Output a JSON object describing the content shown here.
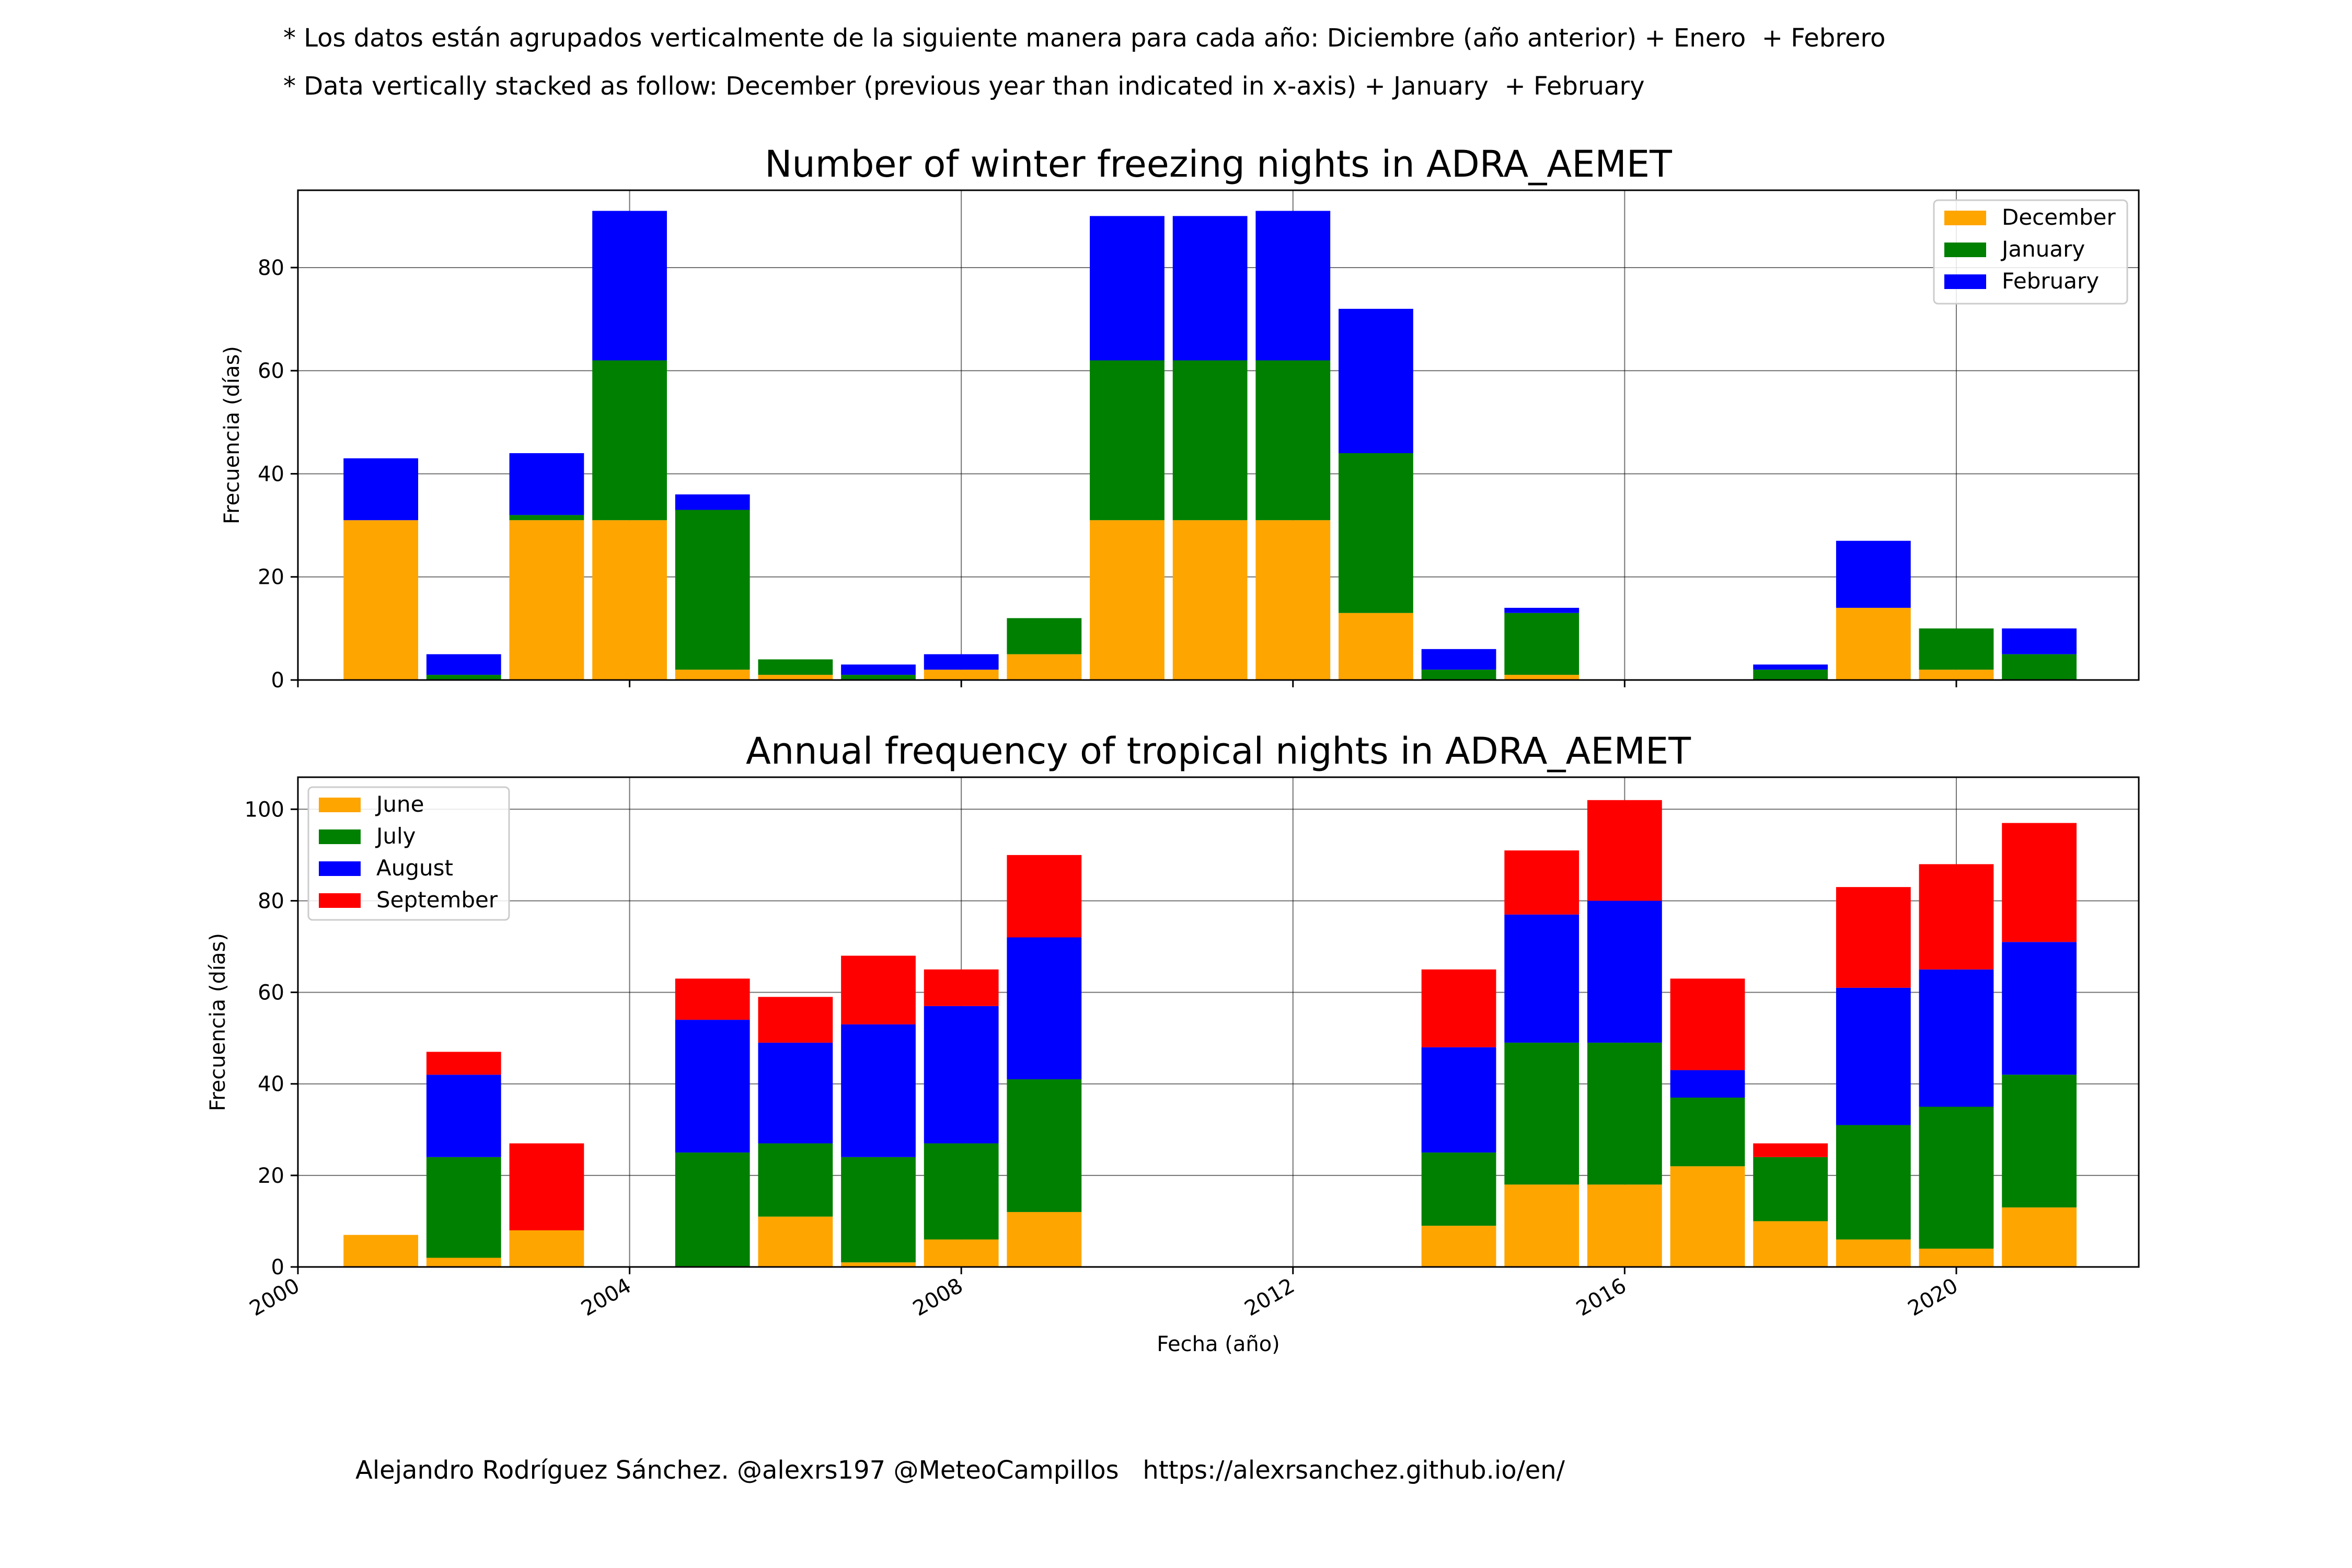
{
  "notes": {
    "line1": "* Los datos están agrupados verticalmente de la siguiente manera para cada año: Diciembre (año anterior) + Enero  + Febrero",
    "line2": "* Data vertically stacked as follow: December (previous year than indicated in x-axis) + January  + February"
  },
  "footer": "Alejandro Rodríguez Sánchez. @alexrs197 @MeteoCampillos   https://alexrsanchez.github.io/en/",
  "colors": {
    "orange": "#FFA500",
    "green": "#008000",
    "blue": "#0000FF",
    "red": "#FF0000"
  },
  "chart_data": [
    {
      "type": "bar",
      "stacked": true,
      "title": "Number of winter freezing nights in ADRA_AEMET",
      "ylabel": "Frecuencia (días)",
      "xlabel": "",
      "xlim": [
        2000,
        2022.2
      ],
      "ylim": [
        0,
        95
      ],
      "xticks": [
        2000,
        2004,
        2008,
        2012,
        2016,
        2020
      ],
      "yticks": [
        0,
        20,
        40,
        60,
        80
      ],
      "grid": true,
      "legend_position": "top-right",
      "categories": [
        2001,
        2002,
        2003,
        2004,
        2005,
        2006,
        2007,
        2008,
        2009,
        2010,
        2011,
        2012,
        2013,
        2014,
        2015,
        2016,
        2017,
        2018,
        2019,
        2020,
        2021
      ],
      "series": [
        {
          "name": "December",
          "color": "#FFA500",
          "values": [
            31,
            0,
            31,
            31,
            2,
            1,
            0,
            2,
            5,
            31,
            31,
            31,
            13,
            0,
            1,
            0,
            0,
            0,
            14,
            2,
            0
          ]
        },
        {
          "name": "January",
          "color": "#008000",
          "values": [
            0,
            1,
            1,
            31,
            31,
            3,
            1,
            0,
            7,
            31,
            31,
            31,
            31,
            2,
            12,
            0,
            0,
            2,
            0,
            8,
            5
          ]
        },
        {
          "name": "February",
          "color": "#0000FF",
          "values": [
            12,
            4,
            12,
            29,
            3,
            0,
            2,
            3,
            0,
            28,
            28,
            29,
            28,
            4,
            1,
            0,
            0,
            1,
            13,
            0,
            5
          ]
        }
      ]
    },
    {
      "type": "bar",
      "stacked": true,
      "title": "Annual frequency of tropical nights in ADRA_AEMET",
      "ylabel": "Frecuencia (días)",
      "xlabel": "Fecha (año)",
      "xlim": [
        2000,
        2022.2
      ],
      "ylim": [
        0,
        107
      ],
      "xticks": [
        2000,
        2004,
        2008,
        2012,
        2016,
        2020
      ],
      "yticks": [
        0,
        20,
        40,
        60,
        80,
        100
      ],
      "grid": true,
      "legend_position": "top-left",
      "categories": [
        2001,
        2002,
        2003,
        2004,
        2005,
        2006,
        2007,
        2008,
        2009,
        2010,
        2011,
        2012,
        2013,
        2014,
        2015,
        2016,
        2017,
        2018,
        2019,
        2020,
        2021
      ],
      "series": [
        {
          "name": "June",
          "color": "#FFA500",
          "values": [
            7,
            2,
            8,
            0,
            0,
            11,
            1,
            6,
            12,
            0,
            0,
            0,
            0,
            9,
            18,
            18,
            22,
            10,
            6,
            4,
            13
          ]
        },
        {
          "name": "July",
          "color": "#008000",
          "values": [
            0,
            22,
            0,
            0,
            25,
            16,
            23,
            21,
            29,
            0,
            0,
            0,
            0,
            16,
            31,
            31,
            15,
            14,
            25,
            31,
            29
          ]
        },
        {
          "name": "August",
          "color": "#0000FF",
          "values": [
            0,
            18,
            0,
            0,
            29,
            22,
            29,
            30,
            31,
            0,
            0,
            0,
            0,
            23,
            28,
            31,
            6,
            0,
            30,
            30,
            29
          ]
        },
        {
          "name": "September",
          "color": "#FF0000",
          "values": [
            0,
            5,
            19,
            0,
            9,
            10,
            15,
            8,
            18,
            0,
            0,
            0,
            0,
            17,
            14,
            22,
            20,
            3,
            22,
            23,
            26
          ]
        }
      ]
    }
  ]
}
